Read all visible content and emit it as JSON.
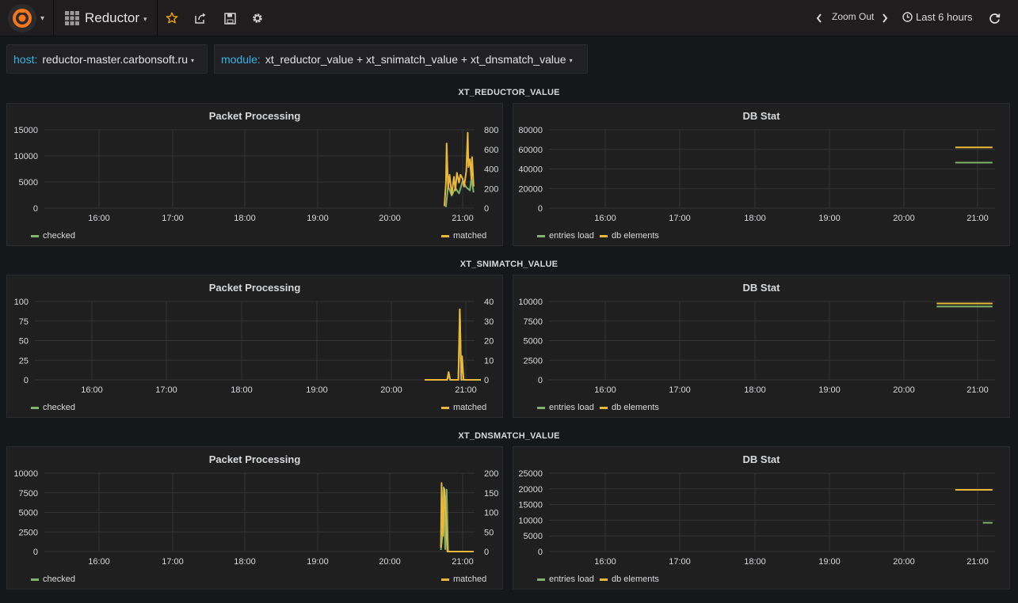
{
  "dashboard": {
    "title": "Reductor",
    "zoom_out": "Zoom Out",
    "time_range": "Last 6 hours"
  },
  "icons": {
    "logo": "grafana-logo-icon",
    "dashboards": "grid-icon",
    "star": "star-icon",
    "share": "share-icon",
    "save": "save-icon",
    "settings": "gear-icon",
    "prev": "chevron-left-icon",
    "next": "chevron-right-icon",
    "clock": "clock-icon",
    "refresh": "refresh-icon"
  },
  "colors": {
    "green": "#7eb26d",
    "yellow": "#eab839",
    "accent": "#33b5e5",
    "star": "#f0a30a"
  },
  "template_vars": [
    {
      "label": "host:",
      "value": "reductor-master.carbonsoft.ru"
    },
    {
      "label": "module:",
      "value": "xt_reductor_value + xt_snimatch_value + xt_dnsmatch_value"
    }
  ],
  "rows": [
    {
      "title": "XT_REDUCTOR_VALUE"
    },
    {
      "title": "XT_SNIMATCH_VALUE"
    },
    {
      "title": "XT_DNSMATCH_VALUE"
    }
  ],
  "legend": {
    "checked": "checked",
    "matched": "matched",
    "entries_load": "entries load",
    "db_elements": "db elements"
  },
  "chart_data": [
    {
      "type": "line",
      "title": "Packet Processing",
      "row": "XT_REDUCTOR_VALUE",
      "x_ticks": [
        "16:00",
        "17:00",
        "18:00",
        "19:00",
        "20:00",
        "21:00"
      ],
      "y_ticks_left": [
        "15000",
        "10000",
        "5000",
        "0"
      ],
      "y_ticks_right": [
        "800",
        "600",
        "400",
        "200",
        "0"
      ],
      "ylim_left": [
        0,
        15000
      ],
      "ylim_right": [
        0,
        800
      ],
      "series": [
        {
          "name": "checked",
          "axis": "left",
          "color": "#7eb26d",
          "x": [
            20.77,
            20.8,
            20.85,
            20.9,
            20.95,
            21.0,
            21.05,
            21.1,
            21.12,
            21.15
          ],
          "y": [
            200,
            4200,
            2400,
            3900,
            2800,
            5200,
            4000,
            3400,
            5800,
            3000
          ]
        },
        {
          "name": "matched",
          "axis": "right",
          "color": "#eab839",
          "x": [
            20.75,
            20.77,
            20.78,
            20.8,
            20.82,
            20.85,
            20.88,
            20.9,
            20.92,
            20.95,
            20.97,
            21.0,
            21.02,
            21.05,
            21.07,
            21.08,
            21.1,
            21.12,
            21.13,
            21.15
          ],
          "y": [
            20,
            260,
            660,
            200,
            340,
            140,
            320,
            180,
            360,
            260,
            340,
            300,
            220,
            380,
            770,
            420,
            500,
            300,
            520,
            220
          ]
        }
      ]
    },
    {
      "type": "line",
      "title": "DB Stat",
      "row": "XT_REDUCTOR_VALUE",
      "x_ticks": [
        "16:00",
        "17:00",
        "18:00",
        "19:00",
        "20:00",
        "21:00"
      ],
      "y_ticks_left": [
        "80000",
        "60000",
        "40000",
        "20000",
        "0"
      ],
      "ylim_left": [
        0,
        80000
      ],
      "series": [
        {
          "name": "entries load",
          "color": "#7eb26d",
          "x": [
            20.7,
            21.2
          ],
          "y": [
            46500,
            46500
          ]
        },
        {
          "name": "db elements",
          "color": "#eab839",
          "x": [
            20.7,
            21.2
          ],
          "y": [
            62000,
            62000
          ]
        }
      ]
    },
    {
      "type": "line",
      "title": "Packet Processing",
      "row": "XT_SNIMATCH_VALUE",
      "x_ticks": [
        "16:00",
        "17:00",
        "18:00",
        "19:00",
        "20:00",
        "21:00"
      ],
      "y_ticks_left": [
        "100",
        "75",
        "50",
        "25",
        "0"
      ],
      "y_ticks_right": [
        "40",
        "30",
        "20",
        "10",
        "0"
      ],
      "ylim_left": [
        0,
        100
      ],
      "ylim_right": [
        0,
        40
      ],
      "series": [
        {
          "name": "checked",
          "axis": "left",
          "color": "#7eb26d",
          "x": [
            20.45,
            20.75,
            20.77,
            20.79,
            20.9,
            20.92,
            20.94,
            20.96,
            21.2
          ],
          "y": [
            0,
            0,
            6,
            0,
            0,
            90,
            0,
            0,
            0
          ]
        },
        {
          "name": "matched",
          "axis": "right",
          "color": "#eab839",
          "x": [
            20.45,
            20.75,
            20.77,
            20.79,
            20.9,
            20.92,
            20.94,
            20.95,
            20.97,
            21.2
          ],
          "y": [
            0,
            0,
            4,
            0,
            0,
            36,
            0,
            12,
            0,
            0
          ]
        }
      ]
    },
    {
      "type": "line",
      "title": "DB Stat",
      "row": "XT_SNIMATCH_VALUE",
      "x_ticks": [
        "16:00",
        "17:00",
        "18:00",
        "19:00",
        "20:00",
        "21:00"
      ],
      "y_ticks_left": [
        "10000",
        "7500",
        "5000",
        "2500",
        "0"
      ],
      "ylim_left": [
        0,
        10000
      ],
      "series": [
        {
          "name": "entries load",
          "color": "#7eb26d",
          "x": [
            20.45,
            21.2
          ],
          "y": [
            9350,
            9350
          ]
        },
        {
          "name": "db elements",
          "color": "#eab839",
          "x": [
            20.45,
            21.2
          ],
          "y": [
            9750,
            9750
          ]
        }
      ]
    },
    {
      "type": "line",
      "title": "Packet Processing",
      "row": "XT_DNSMATCH_VALUE",
      "x_ticks": [
        "16:00",
        "17:00",
        "18:00",
        "19:00",
        "20:00",
        "21:00"
      ],
      "y_ticks_left": [
        "10000",
        "7500",
        "5000",
        "2500",
        "0"
      ],
      "y_ticks_right": [
        "200",
        "150",
        "100",
        "50",
        "0"
      ],
      "ylim_left": [
        0,
        10000
      ],
      "ylim_right": [
        0,
        200
      ],
      "series": [
        {
          "name": "checked",
          "axis": "left",
          "color": "#7eb26d",
          "x": [
            20.7,
            20.72,
            20.74,
            20.76,
            20.78,
            20.8,
            20.82,
            21.15
          ],
          "y": [
            200,
            1800,
            8200,
            300,
            7900,
            100,
            0,
            0
          ]
        },
        {
          "name": "matched",
          "axis": "right",
          "color": "#eab839",
          "x": [
            20.7,
            20.71,
            20.73,
            20.75,
            20.77,
            20.79,
            20.81,
            21.15
          ],
          "y": [
            10,
            175,
            40,
            160,
            90,
            0,
            0,
            0
          ]
        }
      ]
    },
    {
      "type": "line",
      "title": "DB Stat",
      "row": "XT_DNSMATCH_VALUE",
      "x_ticks": [
        "16:00",
        "17:00",
        "18:00",
        "19:00",
        "20:00",
        "21:00"
      ],
      "y_ticks_left": [
        "25000",
        "20000",
        "15000",
        "10000",
        "5000",
        "0"
      ],
      "ylim_left": [
        0,
        25000
      ],
      "series": [
        {
          "name": "entries load",
          "color": "#7eb26d",
          "x": [
            21.07,
            21.2
          ],
          "y": [
            9200,
            9200
          ]
        },
        {
          "name": "db elements",
          "color": "#eab839",
          "x": [
            20.7,
            21.2
          ],
          "y": [
            19700,
            19700
          ]
        }
      ]
    }
  ]
}
